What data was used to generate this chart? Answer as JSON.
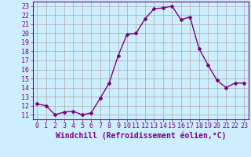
{
  "x": [
    0,
    1,
    2,
    3,
    4,
    5,
    6,
    7,
    8,
    9,
    10,
    11,
    12,
    13,
    14,
    15,
    16,
    17,
    18,
    19,
    20,
    21,
    22,
    23
  ],
  "y": [
    12.2,
    12.0,
    11.0,
    11.3,
    11.4,
    11.0,
    11.2,
    12.8,
    14.5,
    17.5,
    19.9,
    20.0,
    21.6,
    22.7,
    22.8,
    23.0,
    21.5,
    21.8,
    18.3,
    16.5,
    14.8,
    14.0,
    14.5,
    14.5
  ],
  "line_color": "#800080",
  "marker": "D",
  "marker_size": 2,
  "bg_color": "#cceeff",
  "grid_color": "#aaaaaa",
  "xlabel": "Windchill (Refroidissement éolien,°C)",
  "ylabel": "",
  "ylim": [
    10.5,
    23.5
  ],
  "xlim": [
    -0.5,
    23.5
  ],
  "yticks": [
    11,
    12,
    13,
    14,
    15,
    16,
    17,
    18,
    19,
    20,
    21,
    22,
    23
  ],
  "xticks": [
    0,
    1,
    2,
    3,
    4,
    5,
    6,
    7,
    8,
    9,
    10,
    11,
    12,
    13,
    14,
    15,
    16,
    17,
    18,
    19,
    20,
    21,
    22,
    23
  ],
  "tick_color": "#800080",
  "tick_label_color": "#800080",
  "xlabel_color": "#800080",
  "xlabel_fontsize": 7,
  "tick_fontsize": 6,
  "line_width": 1.0
}
